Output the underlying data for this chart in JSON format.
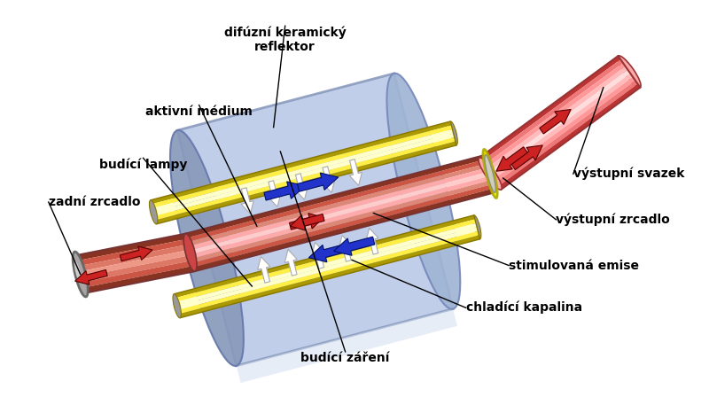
{
  "fig_width": 8.0,
  "fig_height": 4.48,
  "dpi": 100,
  "bg_color": "#ffffff",
  "labels": {
    "difuzni_keramicky_reflektor": "difúzní keramický\nreflektor",
    "aktivni_medium": "aktivní médium",
    "budici_lampy": "budící lampy",
    "zadni_zrcadlo": "zadní zrcadlo",
    "vystupni_svazek": "výstupní svazek",
    "vystupni_zrcadlo": "výstupní zrcadlo",
    "stimulovana_emise": "stimulovaná emise",
    "chladici_kapalina": "chladící kapalina",
    "budici_zareni": "budící záření"
  },
  "font_size": 10,
  "font_weight": "bold"
}
